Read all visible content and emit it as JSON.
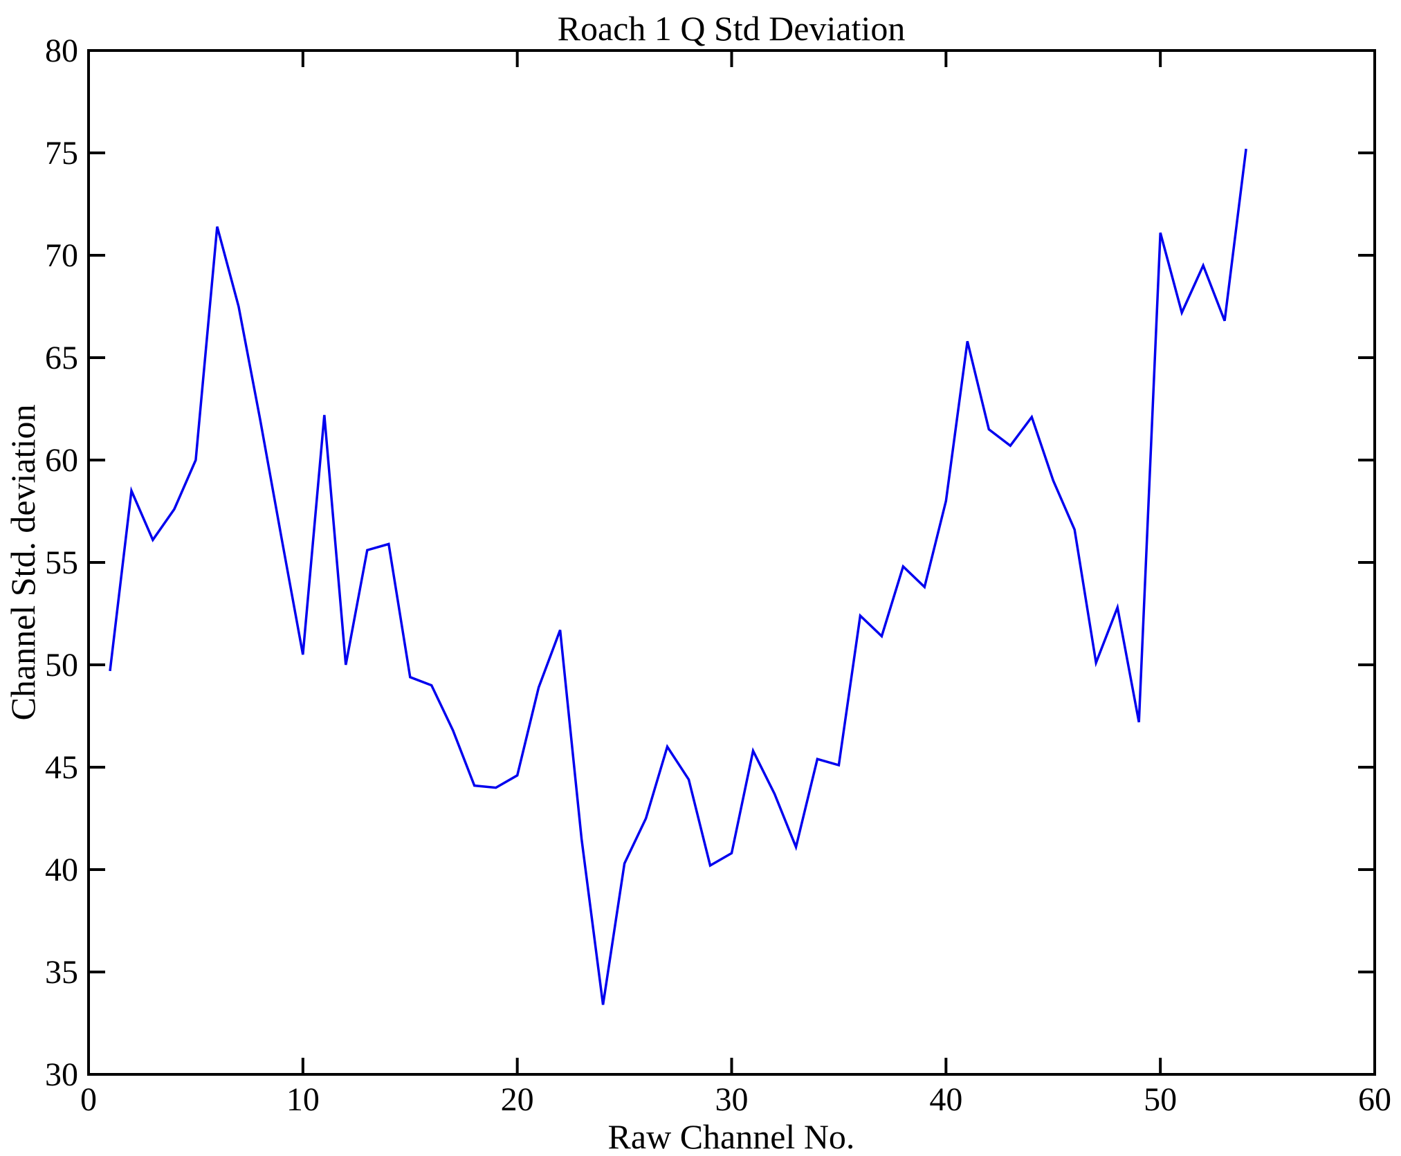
{
  "chart_data": {
    "type": "line",
    "title": "Roach 1 Q Std Deviation",
    "xlabel": "Raw Channel No.",
    "ylabel": "Channel Std. deviation",
    "xlim": [
      0,
      60
    ],
    "ylim": [
      30,
      80
    ],
    "xticks": [
      0,
      10,
      20,
      30,
      40,
      50,
      60
    ],
    "yticks": [
      30,
      35,
      40,
      45,
      50,
      55,
      60,
      65,
      70,
      75,
      80
    ],
    "grid": false,
    "legend_position": "none",
    "line_color": "#0000ee",
    "axis_color": "#000000",
    "background": "#ffffff",
    "x": [
      1,
      2,
      3,
      4,
      5,
      6,
      7,
      8,
      9,
      10,
      11,
      12,
      13,
      14,
      15,
      16,
      17,
      18,
      19,
      20,
      21,
      22,
      23,
      24,
      25,
      26,
      27,
      28,
      29,
      30,
      31,
      32,
      33,
      34,
      35,
      36,
      37,
      38,
      39,
      40,
      41,
      42,
      43,
      44,
      45,
      46,
      47,
      48,
      49,
      50,
      51,
      52,
      53,
      54
    ],
    "y": [
      49.7,
      58.5,
      56.1,
      57.6,
      60.0,
      71.4,
      67.5,
      62.0,
      56.2,
      50.5,
      62.2,
      50.0,
      55.6,
      55.9,
      49.4,
      49.0,
      46.8,
      44.1,
      44.0,
      44.6,
      48.9,
      51.7,
      41.5,
      33.4,
      40.3,
      42.5,
      46.0,
      44.4,
      40.2,
      40.8,
      45.8,
      43.7,
      41.1,
      45.4,
      45.1,
      52.4,
      51.4,
      54.8,
      53.8,
      58.0,
      65.8,
      61.5,
      60.7,
      62.1,
      59.0,
      56.6,
      50.1,
      52.8,
      47.2,
      71.1,
      67.2,
      69.5,
      66.8,
      75.2
    ]
  }
}
